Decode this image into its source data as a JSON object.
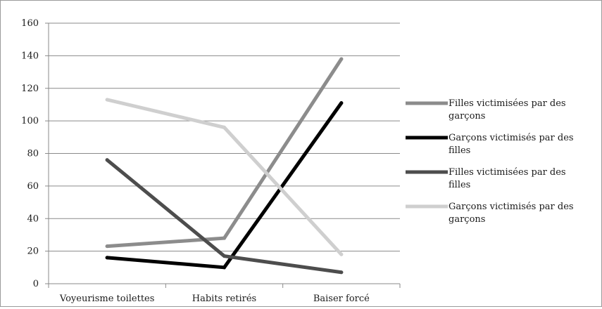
{
  "chart_data": {
    "type": "line",
    "title": "",
    "xlabel": "",
    "ylabel": "",
    "categories": [
      "Voyeurisme toilettes",
      "Habits retirés",
      "Baiser forcé"
    ],
    "ylim": [
      0,
      160
    ],
    "yticks": [
      0,
      20,
      40,
      60,
      80,
      100,
      120,
      140,
      160
    ],
    "grid": true,
    "legend_position": "right",
    "series": [
      {
        "name": "Filles victimisées par des garçons",
        "legend_lines": [
          "Filles victimisées par des",
          "garçons"
        ],
        "color": "#8c8c8c",
        "values": [
          23,
          28,
          138
        ]
      },
      {
        "name": "Garçons victimisés par des filles",
        "legend_lines": [
          "Garçons victimisés par des",
          "filles"
        ],
        "color": "#000000",
        "values": [
          16,
          10,
          111
        ]
      },
      {
        "name": "Filles victimisées par des filles",
        "legend_lines": [
          "Filles victimisées par des",
          "filles"
        ],
        "color": "#4d4d4d",
        "values": [
          76,
          17,
          7
        ]
      },
      {
        "name": "Garçons victimisés par des garçons",
        "legend_lines": [
          "Garçons victimisés par des",
          "garçons"
        ],
        "color": "#cfcfcf",
        "values": [
          113,
          96,
          18
        ]
      }
    ]
  }
}
